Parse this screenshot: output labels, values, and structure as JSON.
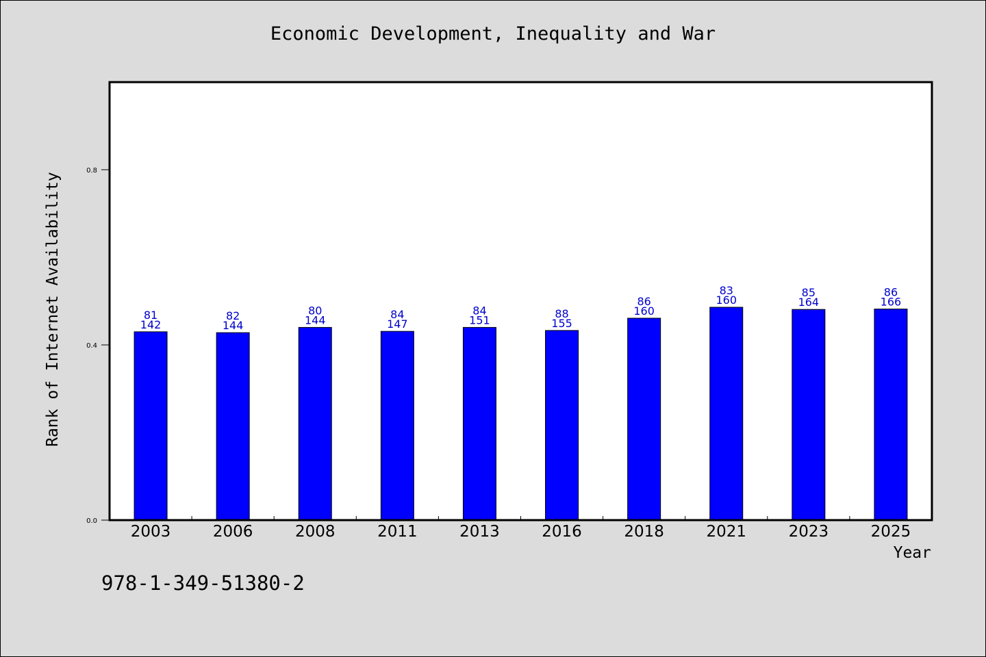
{
  "title": "Economic Development, Inequality and War",
  "footnote": "978-1-349-51380-2",
  "colors": {
    "bar": "#0000ff",
    "label": "#0000cc",
    "background": "#dcdcdc",
    "plot": "#ffffff"
  },
  "chart_data": {
    "type": "bar",
    "title": "Economic Development, Inequality and War",
    "xlabel": "Year",
    "ylabel": "Rank of Internet Availability",
    "categories": [
      "2003",
      "2006",
      "2008",
      "2011",
      "2013",
      "2016",
      "2018",
      "2021",
      "2023",
      "2025"
    ],
    "values": [
      0.43,
      0.428,
      0.44,
      0.431,
      0.44,
      0.433,
      0.461,
      0.486,
      0.481,
      0.482
    ],
    "label_rank": [
      "81",
      "82",
      "80",
      "84",
      "84",
      "88",
      "86",
      "83",
      "85",
      "86"
    ],
    "label_total": [
      "142",
      "144",
      "144",
      "147",
      "151",
      "155",
      "160",
      "160",
      "164",
      "166"
    ],
    "ylim": [
      0,
      1
    ],
    "yticks": [
      "0.0",
      "0.4",
      "0.8"
    ],
    "grid": false,
    "legend": "none"
  }
}
